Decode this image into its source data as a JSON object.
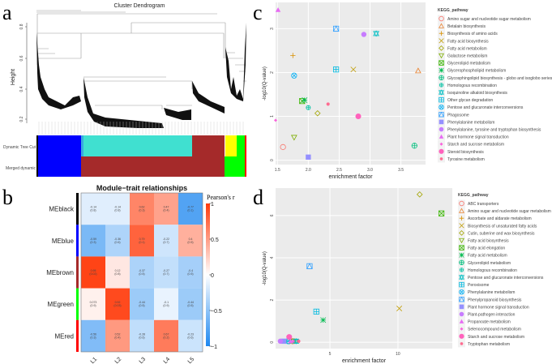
{
  "panels": {
    "a": {
      "letter": "a",
      "title": "Cluster Dendrogram",
      "ylabel": "Height",
      "yticks": [
        "0.2",
        "0.4",
        "0.6",
        "0.8"
      ],
      "bar_labels": [
        "Dynamic Tree Cut",
        "Merged dynamic"
      ]
    },
    "b": {
      "letter": "b"
    },
    "c": {
      "letter": "c"
    },
    "d": {
      "letter": "d"
    }
  },
  "chart_data": [
    {
      "type": "heatmap",
      "title": "Module−trait relationships",
      "legend_title": "Pearson's r",
      "legend_ticks": [
        "1",
        "0.5",
        "0",
        "−0.5",
        "−1"
      ],
      "rows": [
        "MEblack",
        "MEblue",
        "MEbrown",
        "MEgreen",
        "MEred"
      ],
      "row_colors": [
        "#000000",
        "#0000FF",
        "#A52A2A",
        "#00FF00",
        "#FF0000"
      ],
      "cols": [
        "L1",
        "L2",
        "L3",
        "L4",
        "L5"
      ],
      "values": [
        [
          -0.14,
          -0.14,
          0.62,
          0.47,
          -0.77
        ],
        [
          -0.59,
          -0.36,
          0.79,
          -0.22,
          0.4
        ],
        [
          0.95,
          0.12,
          -0.37,
          -0.27,
          -0.4
        ],
        [
          0.073,
          0.92,
          -0.44,
          -0.1,
          -0.44
        ],
        [
          -0.56,
          0.52,
          -0.28,
          0.67,
          -0.23
        ]
      ],
      "pvalues": [
        [
          "(0.8)",
          "(0.8)",
          "(0.3)",
          "(0.4)",
          "(0.1)"
        ],
        [
          "(0.3)",
          "(0.6)",
          "(0.1)",
          "(0.7)",
          "(0.5)"
        ],
        [
          "(0.02)",
          "(0.8)",
          "(0.5)",
          "(0.7)",
          "(0.5)"
        ],
        [
          "(0.9)",
          "(0.03)",
          "(0.5)",
          "(0.9)",
          "(0.5)"
        ],
        [
          "(0.3)",
          "(0.4)",
          "(0.6)",
          "(0.2)",
          "(0.6)"
        ]
      ],
      "color_low": "#1E88F0",
      "color_mid": "#FFFFFF",
      "color_high": "#FF3A0A"
    },
    {
      "type": "scatter",
      "xlabel": "enrichment factor",
      "ylabel": "-log10(Q-value)",
      "legend_title": "KEGG_pathway",
      "xticks": [
        "1.5",
        "2.0",
        "2.5",
        "3.0",
        "3.5"
      ],
      "xtick_values": [
        1.5,
        2.0,
        2.5,
        3.0,
        3.5
      ],
      "yticks": [
        "0",
        "1",
        "2",
        "3"
      ],
      "ytick_values": [
        0,
        1,
        2,
        3
      ],
      "xlim": [
        1.47,
        3.9
      ],
      "ylim": [
        -0.1,
        3.6
      ],
      "series": [
        {
          "name": "Amino sugar and nucleotide sugar metabolism",
          "shape": "circle-open",
          "color": "#F8766D",
          "x": 1.59,
          "y": 0.3
        },
        {
          "name": "Betalain biosynthesis",
          "shape": "triangle-open",
          "color": "#EA8331",
          "x": 3.78,
          "y": 2.04
        },
        {
          "name": "Biosynthesis of amino acids",
          "shape": "plus",
          "color": "#D89000",
          "x": 1.75,
          "y": 2.39
        },
        {
          "name": "Fatty acid biosynthesis",
          "shape": "cross",
          "color": "#C09B00",
          "x": 2.73,
          "y": 2.07
        },
        {
          "name": "Fatty acid metabolism",
          "shape": "diamond-open",
          "color": "#A3A500",
          "x": 2.15,
          "y": 1.07
        },
        {
          "name": "Galactose metabolism",
          "shape": "triangle-down-open",
          "color": "#7CAE00",
          "x": 1.77,
          "y": 0.52
        },
        {
          "name": "Glycerolipid metabolism",
          "shape": "square-cross",
          "color": "#39B600",
          "x": 1.9,
          "y": 1.35
        },
        {
          "name": "Glycerophospholipid metabolism",
          "shape": "asterisk",
          "color": "#00BB4E",
          "x": 1.94,
          "y": 1.37
        },
        {
          "name": "Glycosphingolipid biosynthesis - globo and isoglobo series",
          "shape": "circle-plus",
          "color": "#00BF7D",
          "x": 3.72,
          "y": 0.33
        },
        {
          "name": "Homologous recombination",
          "shape": "circle-plus-small",
          "color": "#00C1A3",
          "x": 2.0,
          "y": 1.2
        },
        {
          "name": "Isoquinoline alkaloid biosynthesis",
          "shape": "star-david",
          "color": "#00BFC4",
          "x": 3.1,
          "y": 2.89
        },
        {
          "name": "Other glycan degradation",
          "shape": "square-plus",
          "color": "#00BAE0",
          "x": 2.45,
          "y": 2.07
        },
        {
          "name": "Pentose and glucuronate interconversions",
          "shape": "circle-cross",
          "color": "#00B0F6",
          "x": 1.77,
          "y": 1.93
        },
        {
          "name": "Phagosome",
          "shape": "square-triangle",
          "color": "#35A2FF",
          "x": 2.45,
          "y": 3.0
        },
        {
          "name": "Phenylalanine metabolism",
          "shape": "square-filled",
          "color": "#9590FF",
          "x": 2.0,
          "y": 0.07
        },
        {
          "name": "Phenylalanine, tyrosine and tryptophan biosynthesis",
          "shape": "circle-filled",
          "color": "#C77CFF",
          "x": 2.9,
          "y": 2.87
        },
        {
          "name": "Plant hormone signal transduction",
          "shape": "triangle-filled",
          "color": "#E76BF3",
          "x": 1.51,
          "y": 3.43
        },
        {
          "name": "Starch and sucrose metabolism",
          "shape": "diamond-filled",
          "color": "#FA62DB",
          "x": 1.47,
          "y": 0.91
        },
        {
          "name": "Steroid biosynthesis",
          "shape": "circle-large",
          "color": "#FF62BC",
          "x": 2.81,
          "y": 1.0
        },
        {
          "name": "Tyrosine metabolism",
          "shape": "circle-small",
          "color": "#FF6C91",
          "x": 2.32,
          "y": 1.28
        }
      ]
    },
    {
      "type": "scatter",
      "xlabel": "enrichment factor",
      "ylabel": "-log10(Q-value)",
      "legend_title": "KEGG_pathway",
      "xticks": [
        "5",
        "10"
      ],
      "xtick_values": [
        5,
        10
      ],
      "yticks": [
        "0",
        "2",
        "4",
        "6"
      ],
      "ytick_values": [
        0,
        2,
        4,
        6
      ],
      "xlim": [
        1.0,
        14.0
      ],
      "ylim": [
        -0.3,
        7.3
      ],
      "series": [
        {
          "name": "ABC transporters",
          "shape": "circle-open",
          "color": "#F8766D",
          "x": 2.3,
          "y": 0.05
        },
        {
          "name": "Amino sugar and nucleotide sugar metabolism",
          "shape": "triangle-open",
          "color": "#EA8331",
          "x": 2.2,
          "y": 0.05
        },
        {
          "name": "Ascorbate and aldarate metabolism",
          "shape": "plus",
          "color": "#D89000",
          "x": 2.4,
          "y": 0.05
        },
        {
          "name": "Biosynthesis of unsaturated fatty acids",
          "shape": "cross",
          "color": "#C09B00",
          "x": 10.1,
          "y": 1.6
        },
        {
          "name": "Cutin, suberine and wax biosynthesis",
          "shape": "diamond-open",
          "color": "#A3A500",
          "x": 11.6,
          "y": 7.0
        },
        {
          "name": "Fatty acid biosynthesis",
          "shape": "triangle-down-open",
          "color": "#7CAE00",
          "x": 2.2,
          "y": 0.05
        },
        {
          "name": "Fatty acid elongation",
          "shape": "square-cross",
          "color": "#39B600",
          "x": 13.2,
          "y": 6.1
        },
        {
          "name": "Fatty acid metabolism",
          "shape": "asterisk",
          "color": "#00BB4E",
          "x": 4.5,
          "y": 1.05
        },
        {
          "name": "Glycerolipid metabolism",
          "shape": "circle-plus",
          "color": "#00BF7D",
          "x": 2.0,
          "y": 0.05
        },
        {
          "name": "Homologous recombination",
          "shape": "circle-plus-small",
          "color": "#00C1A3",
          "x": 2.6,
          "y": 0.05
        },
        {
          "name": "Pentose and glucuronate interconversions",
          "shape": "star-david",
          "color": "#00BFC4",
          "x": 2.5,
          "y": 0.05
        },
        {
          "name": "Peroxisome",
          "shape": "square-plus",
          "color": "#00BAE0",
          "x": 4.0,
          "y": 1.45
        },
        {
          "name": "Phenylalanine metabolism",
          "shape": "circle-cross",
          "color": "#00B0F6",
          "x": 1.9,
          "y": 0.05
        },
        {
          "name": "Phenylpropanoid biosynthesis",
          "shape": "square-triangle",
          "color": "#35A2FF",
          "x": 3.5,
          "y": 3.6
        },
        {
          "name": "Plant hormone signal transduction",
          "shape": "square-filled",
          "color": "#9590FF",
          "x": 1.6,
          "y": 0.05
        },
        {
          "name": "Plant-pathogen interaction",
          "shape": "circle-filled",
          "color": "#C77CFF",
          "x": 1.35,
          "y": 0.05
        },
        {
          "name": "Propanoate metabolism",
          "shape": "triangle-filled",
          "color": "#E76BF3",
          "x": 2.1,
          "y": 0.05
        },
        {
          "name": "Selenocompound metabolism",
          "shape": "diamond-filled",
          "color": "#FA62DB",
          "x": 2.3,
          "y": 0.05
        },
        {
          "name": "Starch and sucrose metabolism",
          "shape": "circle-large",
          "color": "#FF62BC",
          "x": 2.0,
          "y": 0.25
        },
        {
          "name": "Tryptophan metabolism",
          "shape": "circle-small",
          "color": "#FF6C91",
          "x": 2.7,
          "y": 0.05
        }
      ]
    }
  ]
}
